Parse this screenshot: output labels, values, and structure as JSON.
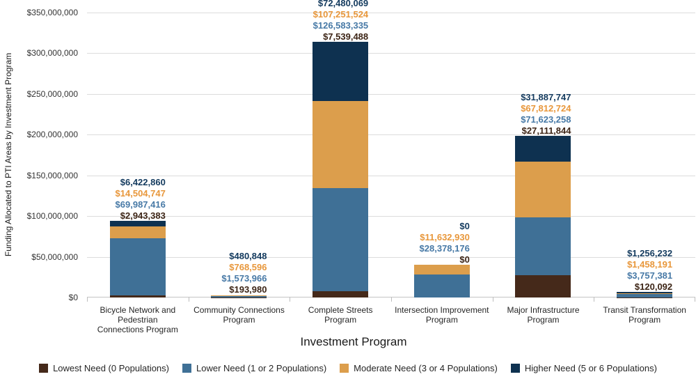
{
  "chart_data": {
    "type": "bar",
    "stacked": true,
    "title": "",
    "xlabel": "Investment Program",
    "ylabel": "Funding Allocated to PTI Areas by Investment Program",
    "ylim": [
      0,
      350000000
    ],
    "ytick_step": 50000000,
    "ytick_labels": [
      "$0",
      "$50,000,000",
      "$100,000,000",
      "$150,000,000",
      "$200,000,000",
      "$250,000,000",
      "$300,000,000",
      "$350,000,000"
    ],
    "grid": true,
    "legend_position": "bottom",
    "colors": {
      "gridline": "#dcdcdc",
      "axis_line": "#c3c3c3",
      "tick": "#bdbdbd",
      "background": "#ffffff"
    },
    "categories": [
      "Bicycle Network and\nPedestrian\nConnections Program",
      "Community Connections\nProgram",
      "Complete Streets\nProgram",
      "Intersection Improvement\nProgram",
      "Major Infrastructure\nProgram",
      "Transit Transformation\nProgram"
    ],
    "series": [
      {
        "name": "Lowest Need (0 Populations)",
        "color": "#45291a",
        "label_color": "#3c2415",
        "values": [
          2943383,
          193980,
          7539488,
          0,
          27111844,
          120092
        ],
        "labels": [
          "$2,943,383",
          "$193,980",
          "$7,539,488",
          "$0",
          "$27,111,844",
          "$120,092"
        ]
      },
      {
        "name": "Lower Need (1 or 2 Populations)",
        "color": "#3f7096",
        "label_color": "#4779a6",
        "values": [
          69987416,
          1573966,
          126583335,
          28378176,
          71623258,
          3757381
        ],
        "labels": [
          "$69,987,416",
          "$1,573,966",
          "$126,583,335",
          "$28,378,176",
          "$71,623,258",
          "$3,757,381"
        ]
      },
      {
        "name": "Moderate Need (3 or 4 Populations)",
        "color": "#dc9e4c",
        "label_color": "#e8973b",
        "values": [
          14504747,
          768596,
          107251524,
          11632930,
          67812724,
          1458191
        ],
        "labels": [
          "$14,504,747",
          "$768,596",
          "$107,251,524",
          "$11,632,930",
          "$67,812,724",
          "$1,458,191"
        ]
      },
      {
        "name": "Higher Need (5 or 6 Populations)",
        "color": "#0e3150",
        "label_color": "#133a5e",
        "values": [
          6422860,
          480848,
          72480069,
          0,
          31887747,
          1256232
        ],
        "labels": [
          "$6,422,860",
          "$480,848",
          "$72,480,069",
          "$0",
          "$31,887,747",
          "$1,256,232"
        ]
      }
    ]
  }
}
